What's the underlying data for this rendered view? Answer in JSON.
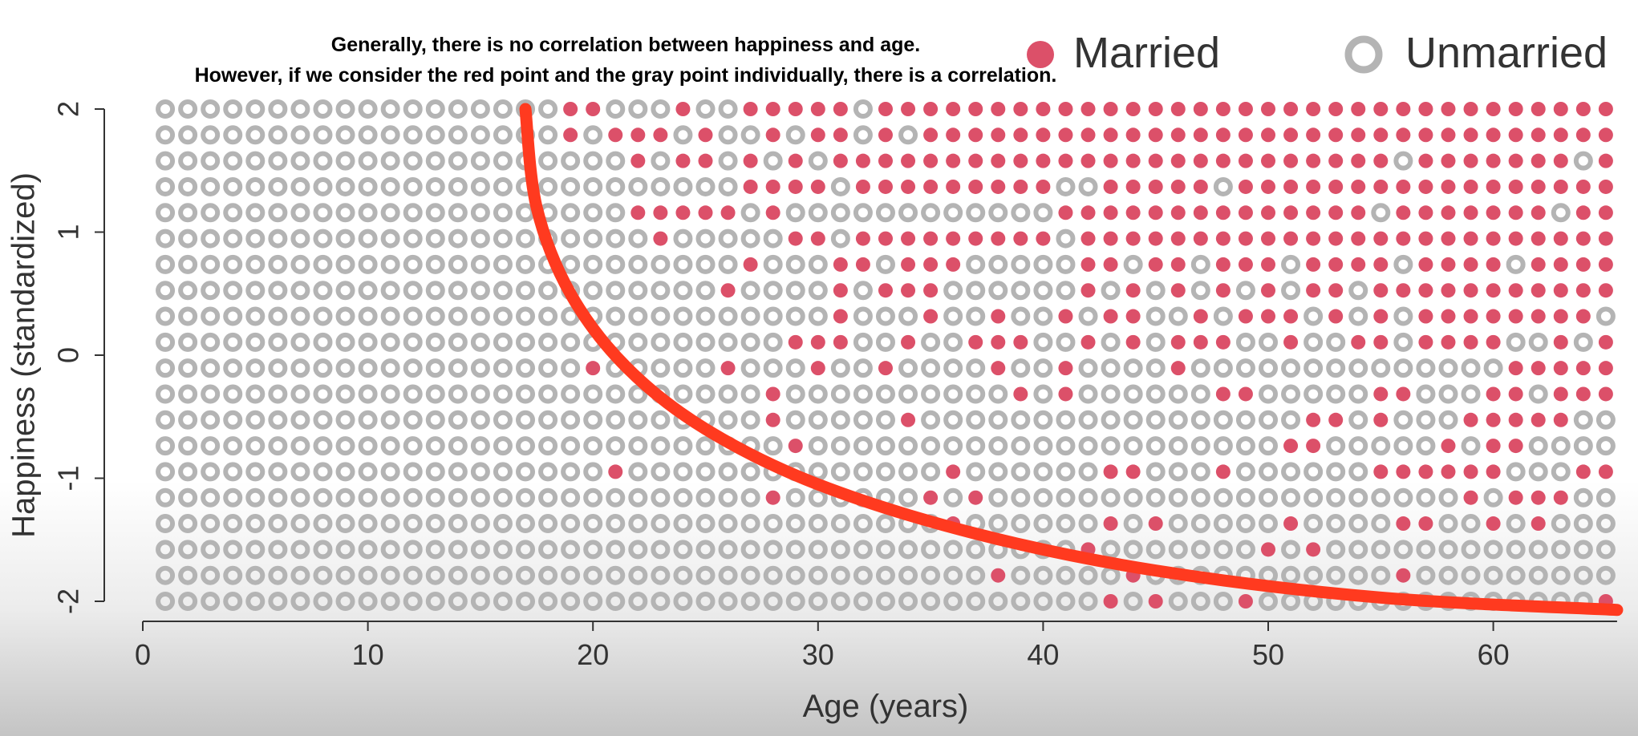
{
  "annotation": {
    "line1": "Generally, there is no correlation between happiness and age.",
    "line2": "However, if we consider the red point and the gray point individually, there is a correlation."
  },
  "colors": {
    "married": "#dc5069",
    "unmarried": "#b4b4b4",
    "trend": "#ff3a1f",
    "axis": "#333333",
    "text": "#333333"
  },
  "chart_data": {
    "type": "scatter",
    "xlabel": "Age (years)",
    "ylabel": "Happiness (standardized)",
    "xlim": [
      0,
      65.5
    ],
    "ylim": [
      -2,
      2
    ],
    "x_ticks": [
      0,
      10,
      20,
      30,
      40,
      50,
      60
    ],
    "y_ticks": [
      2,
      1,
      0,
      -1,
      -2
    ],
    "grid": false,
    "legend": {
      "placement": "top-right",
      "entries": [
        "Married",
        "Unmarried"
      ]
    },
    "ages": {
      "start": 1,
      "end": 65,
      "step": 1
    },
    "happiness_levels": [
      2,
      1.7895,
      1.5789,
      1.3684,
      1.1579,
      0.9474,
      0.7368,
      0.5263,
      0.3158,
      0.1053,
      -0.1053,
      -0.3158,
      -0.5263,
      -0.7368,
      -0.9474,
      -1.1579,
      -1.3684,
      -1.5789,
      -1.7895,
      -2
    ],
    "series": [
      {
        "name": "Married",
        "marker": "filled circle",
        "points_by_level": [
          {
            "happiness": 2,
            "ages": [
              19,
              20,
              24,
              27,
              28,
              29,
              30,
              31,
              33,
              34,
              35,
              36,
              37,
              38,
              39,
              40,
              41,
              42,
              43,
              44,
              45,
              46,
              47,
              48,
              49,
              50,
              51,
              52,
              53,
              54,
              55,
              56,
              57,
              58,
              59,
              60,
              61,
              62,
              63,
              64,
              65
            ]
          },
          {
            "happiness": 1.7895,
            "ages": [
              19,
              21,
              22,
              23,
              25,
              28,
              30,
              31,
              33,
              35,
              36,
              37,
              38,
              39,
              40,
              41,
              42,
              43,
              44,
              45,
              46,
              47,
              48,
              49,
              50,
              51,
              52,
              53,
              54,
              55,
              56,
              57,
              58,
              59,
              60,
              61,
              62,
              63,
              64,
              65
            ]
          },
          {
            "happiness": 1.5789,
            "ages": [
              22,
              24,
              25,
              27,
              29,
              31,
              32,
              33,
              34,
              35,
              36,
              37,
              38,
              39,
              40,
              41,
              42,
              43,
              44,
              45,
              46,
              47,
              48,
              49,
              50,
              51,
              52,
              53,
              54,
              55,
              57,
              58,
              59,
              60,
              61,
              62,
              63,
              65
            ]
          },
          {
            "happiness": 1.3684,
            "ages": [
              27,
              28,
              29,
              30,
              32,
              33,
              34,
              35,
              36,
              37,
              38,
              39,
              40,
              43,
              44,
              45,
              46,
              47,
              49,
              50,
              51,
              52,
              53,
              54,
              55,
              56,
              57,
              58,
              59,
              60,
              61,
              62,
              63,
              64,
              65
            ]
          },
          {
            "happiness": 1.1579,
            "ages": [
              22,
              23,
              24,
              25,
              26,
              28,
              41,
              42,
              43,
              44,
              45,
              46,
              47,
              48,
              49,
              50,
              51,
              52,
              53,
              54,
              56,
              57,
              58,
              59,
              60,
              61,
              62,
              64,
              65
            ]
          },
          {
            "happiness": 0.9474,
            "ages": [
              23,
              29,
              30,
              32,
              33,
              34,
              35,
              36,
              37,
              38,
              39,
              40,
              42,
              43,
              44,
              45,
              46,
              47,
              48,
              49,
              50,
              51,
              52,
              53,
              54,
              55,
              56,
              57,
              58,
              59,
              60,
              61,
              62,
              63,
              64,
              65
            ]
          },
          {
            "happiness": 0.7368,
            "ages": [
              27,
              31,
              32,
              34,
              35,
              36,
              42,
              43,
              45,
              46,
              48,
              49,
              50,
              52,
              53,
              54,
              55,
              57,
              58,
              59,
              60,
              62,
              63,
              64,
              65
            ]
          },
          {
            "happiness": 0.5263,
            "ages": [
              26,
              31,
              33,
              34,
              35,
              42,
              44,
              46,
              48,
              50,
              52,
              53,
              55,
              56,
              57,
              58,
              59,
              60,
              61,
              62,
              63,
              64,
              65
            ]
          },
          {
            "happiness": 0.3158,
            "ages": [
              31,
              35,
              38,
              41,
              43,
              44,
              47,
              49,
              50,
              51,
              53,
              55,
              57,
              58,
              59,
              60,
              61,
              62,
              63,
              64
            ]
          },
          {
            "happiness": 0.1053,
            "ages": [
              29,
              30,
              31,
              34,
              37,
              38,
              39,
              42,
              44,
              46,
              47,
              48,
              51,
              54,
              55,
              57,
              58,
              59,
              60,
              63,
              65
            ]
          },
          {
            "happiness": -0.1053,
            "ages": [
              20,
              26,
              30,
              33,
              38,
              41,
              46,
              61,
              62,
              63,
              64,
              65
            ]
          },
          {
            "happiness": -0.3158,
            "ages": [
              28,
              39,
              41,
              48,
              49,
              55,
              56,
              60,
              61,
              63,
              64,
              65
            ]
          },
          {
            "happiness": -0.5263,
            "ages": [
              28,
              34,
              52,
              53,
              55,
              59,
              60,
              61,
              62,
              63
            ]
          },
          {
            "happiness": -0.7368,
            "ages": [
              29,
              51,
              52,
              58,
              60,
              61
            ]
          },
          {
            "happiness": -0.9474,
            "ages": [
              21,
              36,
              43,
              44,
              48,
              55,
              56,
              57,
              58,
              59,
              60,
              64,
              65
            ]
          },
          {
            "happiness": -1.1579,
            "ages": [
              28,
              35,
              37,
              59,
              61,
              62,
              63
            ]
          },
          {
            "happiness": -1.3684,
            "ages": [
              36,
              43,
              45,
              51,
              56,
              57,
              60,
              62
            ]
          },
          {
            "happiness": -1.5789,
            "ages": [
              42,
              50,
              52
            ]
          },
          {
            "happiness": -1.7895,
            "ages": [
              38,
              44,
              56
            ]
          },
          {
            "happiness": -2,
            "ages": [
              43,
              45,
              49,
              65
            ]
          }
        ]
      },
      {
        "name": "Unmarried",
        "marker": "open ring",
        "points": "every (age, happiness) cell of the grid not listed under Married"
      }
    ],
    "trend_curve": {
      "style": "hand-drawn red curve",
      "points": [
        {
          "x": 17.0,
          "y": 2.0
        },
        {
          "x": 17.5,
          "y": 1.2
        },
        {
          "x": 19.0,
          "y": 0.5
        },
        {
          "x": 21.5,
          "y": -0.1
        },
        {
          "x": 25.0,
          "y": -0.6
        },
        {
          "x": 30.0,
          "y": -1.05
        },
        {
          "x": 37.0,
          "y": -1.45
        },
        {
          "x": 45.0,
          "y": -1.75
        },
        {
          "x": 55.0,
          "y": -1.97
        },
        {
          "x": 65.5,
          "y": -2.07
        }
      ]
    }
  }
}
